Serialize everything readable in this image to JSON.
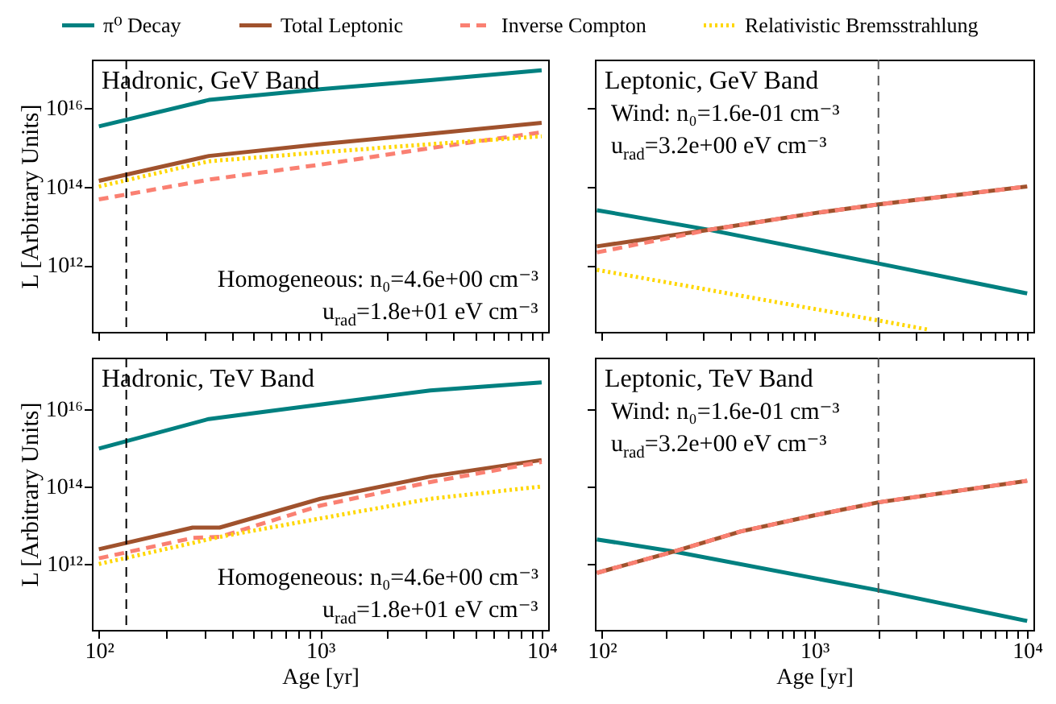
{
  "chart_data": [
    {
      "type": "line",
      "title": "Hadronic, GeV Band",
      "ylabel": "L [Arbitrary Units]",
      "log": "xy",
      "legend": "top",
      "grid": false,
      "tick_labels": "y",
      "xlim": [
        93,
        10700
      ],
      "ylim": [
        20000000000.0,
        1.7e+17
      ],
      "xticks": [
        {
          "value": 100,
          "label": "10²"
        },
        {
          "value": 200,
          "label": null
        },
        {
          "value": 300,
          "label": null
        },
        {
          "value": 400,
          "label": null
        },
        {
          "value": 500,
          "label": null
        },
        {
          "value": 600,
          "label": null
        },
        {
          "value": 700,
          "label": null
        },
        {
          "value": 800,
          "label": null
        },
        {
          "value": 900,
          "label": null
        },
        {
          "value": 1000,
          "label": "10³"
        },
        {
          "value": 2000,
          "label": null
        },
        {
          "value": 3000,
          "label": null
        },
        {
          "value": 4000,
          "label": null
        },
        {
          "value": 5000,
          "label": null
        },
        {
          "value": 6000,
          "label": null
        },
        {
          "value": 7000,
          "label": null
        },
        {
          "value": 8000,
          "label": null
        },
        {
          "value": 9000,
          "label": null
        },
        {
          "value": 10000,
          "label": "10⁴"
        }
      ],
      "yticks": [
        {
          "value": 1000000000000.0,
          "label": "10¹²"
        },
        {
          "value": 100000000000000.0,
          "label": "10¹⁴"
        },
        {
          "value": 1e+16,
          "label": "10¹⁶"
        }
      ],
      "ref_lines": [
        {
          "axis": "x",
          "value": 133,
          "color": "#000000",
          "line_style": "dashed"
        }
      ],
      "annotations": [
        "Homogeneous: n₀=4.6e+00 cm⁻³",
        "u$_{rad}$=1.8e+01 eV cm⁻³"
      ],
      "series": [
        {
          "name": "π⁰ Decay",
          "color": "#008080",
          "line_style": "solid",
          "x": [
            100,
            314,
            1000,
            3140,
            10000
          ],
          "values": [
            3400000000000000.0,
            1.6e+16,
            3e+16,
            5.1e+16,
            9.1e+16
          ]
        },
        {
          "name": "Total Leptonic",
          "color": "#a0522d",
          "line_style": "solid",
          "x": [
            100,
            314,
            1000,
            3140,
            10000
          ],
          "values": [
            140000000000000.0,
            600000000000000.0,
            1200000000000000.0,
            2200000000000000.0,
            4200000000000000.0
          ]
        },
        {
          "name": "Inverse Compton",
          "color": "#fa8072",
          "line_style": "dashed",
          "x": [
            100,
            314,
            1000,
            3140,
            10000
          ],
          "values": [
            47000000000000.0,
            150000000000000.0,
            360000000000000.0,
            950000000000000.0,
            2400000000000000.0
          ]
        },
        {
          "name": "Relativistic Bremsstrahlung",
          "color": "#ffd700",
          "line_style": "dotted",
          "x": [
            100,
            314,
            1000,
            3140,
            10000
          ],
          "values": [
            100000000000000.0,
            440000000000000.0,
            740000000000000.0,
            1200000000000000.0,
            1900000000000000.0
          ]
        }
      ]
    },
    {
      "type": "line",
      "title": "Leptonic, GeV Band",
      "log": "xy",
      "grid": false,
      "tick_labels": false,
      "xlim": [
        93,
        10700
      ],
      "ylim": [
        20000000000.0,
        1.7e+17
      ],
      "xticks": [
        {
          "value": 100,
          "label": "10²"
        },
        {
          "value": 200,
          "label": null
        },
        {
          "value": 300,
          "label": null
        },
        {
          "value": 400,
          "label": null
        },
        {
          "value": 500,
          "label": null
        },
        {
          "value": 600,
          "label": null
        },
        {
          "value": 700,
          "label": null
        },
        {
          "value": 800,
          "label": null
        },
        {
          "value": 900,
          "label": null
        },
        {
          "value": 1000,
          "label": "10³"
        },
        {
          "value": 2000,
          "label": null
        },
        {
          "value": 3000,
          "label": null
        },
        {
          "value": 4000,
          "label": null
        },
        {
          "value": 5000,
          "label": null
        },
        {
          "value": 6000,
          "label": null
        },
        {
          "value": 7000,
          "label": null
        },
        {
          "value": 8000,
          "label": null
        },
        {
          "value": 9000,
          "label": null
        },
        {
          "value": 10000,
          "label": "10⁴"
        }
      ],
      "yticks": [
        {
          "value": 1000000000000.0,
          "label": "10¹²"
        },
        {
          "value": 100000000000000.0,
          "label": "10¹⁴"
        },
        {
          "value": 1e+16,
          "label": "10¹⁶"
        }
      ],
      "ref_lines": [
        {
          "axis": "x",
          "value": 2000,
          "color": "#555555",
          "line_style": "dashed"
        }
      ],
      "annotations": [
        "Wind: n₀=1.6e-01 cm⁻³",
        "u$_{rad}$=3.2e+00 eV cm⁻³"
      ],
      "series": [
        {
          "name": "π⁰ Decay",
          "color": "#008080",
          "line_style": "solid",
          "x": [
            95,
            321,
            2000,
            10000
          ],
          "values": [
            25000000000000.0,
            7900000000000.0,
            1100000000000.0,
            190000000000.0
          ]
        },
        {
          "name": "Total Leptonic",
          "color": "#a0522d",
          "line_style": "solid",
          "x": [
            95,
            321,
            1000,
            2000,
            10000
          ],
          "values": [
            3000000000000.0,
            7900000000000.0,
            21000000000000.0,
            35000000000000.0,
            100000000000000.0
          ]
        },
        {
          "name": "Inverse Compton",
          "color": "#fa8072",
          "line_style": "dashed",
          "x": [
            95,
            321,
            1000,
            2000,
            10000
          ],
          "values": [
            2100000000000.0,
            7900000000000.0,
            21000000000000.0,
            35000000000000.0,
            100000000000000.0
          ]
        },
        {
          "name": "Relativistic Bremsstrahlung",
          "color": "#ffd700",
          "line_style": "dotted",
          "x": [
            95,
            2000,
            3400
          ],
          "values": [
            760000000000.0,
            39000000000.0,
            23000000000.0
          ]
        }
      ]
    },
    {
      "type": "line",
      "title": "Hadronic, TeV Band",
      "xlabel": "Age [yr]",
      "ylabel": "L [Arbitrary Units]",
      "log": "xy",
      "grid": false,
      "xlim": [
        93,
        10700
      ],
      "ylim": [
        20000000000.0,
        2.1e+17
      ],
      "xticks": [
        {
          "value": 100,
          "label": "10²"
        },
        {
          "value": 200,
          "label": null
        },
        {
          "value": 300,
          "label": null
        },
        {
          "value": 400,
          "label": null
        },
        {
          "value": 500,
          "label": null
        },
        {
          "value": 600,
          "label": null
        },
        {
          "value": 700,
          "label": null
        },
        {
          "value": 800,
          "label": null
        },
        {
          "value": 900,
          "label": null
        },
        {
          "value": 1000,
          "label": "10³"
        },
        {
          "value": 2000,
          "label": null
        },
        {
          "value": 3000,
          "label": null
        },
        {
          "value": 4000,
          "label": null
        },
        {
          "value": 5000,
          "label": null
        },
        {
          "value": 6000,
          "label": null
        },
        {
          "value": 7000,
          "label": null
        },
        {
          "value": 8000,
          "label": null
        },
        {
          "value": 9000,
          "label": null
        },
        {
          "value": 10000,
          "label": "10⁴"
        }
      ],
      "yticks": [
        {
          "value": 1000000000000.0,
          "label": "10¹²"
        },
        {
          "value": 100000000000000.0,
          "label": "10¹⁴"
        },
        {
          "value": 1e+16,
          "label": "10¹⁶"
        }
      ],
      "ref_lines": [
        {
          "axis": "x",
          "value": 133,
          "color": "#000000",
          "line_style": "dashed"
        }
      ],
      "annotations": [
        "Homogeneous: n₀=4.6e+00 cm⁻³",
        "u$_{rad}$=1.8e+01 eV cm⁻³"
      ],
      "series": [
        {
          "name": "π⁰ Decay",
          "color": "#008080",
          "line_style": "solid",
          "x": [
            100,
            314,
            1000,
            3140,
            10000
          ],
          "values": [
            950000000000000.0,
            5500000000000000.0,
            1.3e+16,
            3e+16,
            4.8e+16
          ]
        },
        {
          "name": "Total Leptonic",
          "color": "#a0522d",
          "line_style": "solid",
          "x": [
            100,
            265,
            351,
            1000,
            3140,
            10000
          ],
          "values": [
            2400000000000.0,
            8700000000000.0,
            8700000000000.0,
            48000000000000.0,
            180000000000000.0,
            480000000000000.0
          ]
        },
        {
          "name": "Inverse Compton",
          "color": "#fa8072",
          "line_style": "dashed",
          "x": [
            100,
            265,
            351,
            1000,
            3140,
            10000
          ],
          "values": [
            1400000000000.0,
            4700000000000.0,
            5000000000000.0,
            32000000000000.0,
            130000000000000.0,
            430000000000000.0
          ]
        },
        {
          "name": "Relativistic Bremsstrahlung",
          "color": "#ffd700",
          "line_style": "dotted",
          "x": [
            100,
            351,
            1000,
            3140,
            10000
          ],
          "values": [
            1000000000000.0,
            5000000000000.0,
            15000000000000.0,
            48000000000000.0,
            100000000000000.0
          ]
        }
      ]
    },
    {
      "type": "line",
      "title": "Leptonic, TeV Band",
      "xlabel": "Age [yr]",
      "log": "xy",
      "grid": false,
      "tick_labels": "x",
      "xlim": [
        93,
        10700
      ],
      "ylim": [
        20000000000.0,
        2.1e+17
      ],
      "xticks": [
        {
          "value": 100,
          "label": "10²"
        },
        {
          "value": 200,
          "label": null
        },
        {
          "value": 300,
          "label": null
        },
        {
          "value": 400,
          "label": null
        },
        {
          "value": 500,
          "label": null
        },
        {
          "value": 600,
          "label": null
        },
        {
          "value": 700,
          "label": null
        },
        {
          "value": 800,
          "label": null
        },
        {
          "value": 900,
          "label": null
        },
        {
          "value": 1000,
          "label": "10³"
        },
        {
          "value": 2000,
          "label": null
        },
        {
          "value": 3000,
          "label": null
        },
        {
          "value": 4000,
          "label": null
        },
        {
          "value": 5000,
          "label": null
        },
        {
          "value": 6000,
          "label": null
        },
        {
          "value": 7000,
          "label": null
        },
        {
          "value": 8000,
          "label": null
        },
        {
          "value": 9000,
          "label": null
        },
        {
          "value": 10000,
          "label": "10⁴"
        }
      ],
      "yticks": [
        {
          "value": 1000000000000.0,
          "label": "10¹²"
        },
        {
          "value": 100000000000000.0,
          "label": "10¹⁴"
        },
        {
          "value": 1e+16,
          "label": "10¹⁶"
        }
      ],
      "ref_lines": [
        {
          "axis": "x",
          "value": 2000,
          "color": "#555555",
          "line_style": "dashed"
        }
      ],
      "annotations": [
        "Wind: n₀=1.6e-01 cm⁻³",
        "u$_{rad}$=3.2e+00 eV cm⁻³"
      ],
      "series": [
        {
          "name": "π⁰ Decay",
          "color": "#008080",
          "line_style": "solid",
          "x": [
            95,
            219,
            2000,
            10000
          ],
          "values": [
            4300000000000.0,
            2100000000000.0,
            210000000000.0,
            34000000000.0
          ]
        },
        {
          "name": "Total Leptonic",
          "color": "#a0522d",
          "line_style": "solid",
          "x": [
            95,
            219,
            449,
            1000,
            2000,
            10000
          ],
          "values": [
            590000000000.0,
            2100000000000.0,
            6900000000000.0,
            18000000000000.0,
            39000000000000.0,
            140000000000000.0
          ]
        },
        {
          "name": "Inverse Compton",
          "color": "#fa8072",
          "line_style": "dashed",
          "x": [
            95,
            219,
            449,
            1000,
            2000,
            10000
          ],
          "values": [
            590000000000.0,
            2100000000000.0,
            6900000000000.0,
            18000000000000.0,
            39000000000000.0,
            140000000000000.0
          ]
        }
      ]
    }
  ]
}
